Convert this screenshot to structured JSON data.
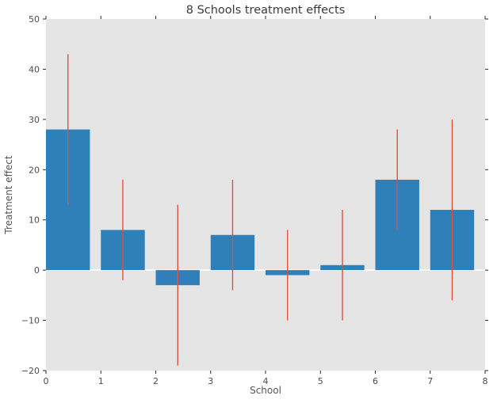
{
  "chart_data": {
    "type": "bar",
    "title": "8 Schools treatment effects",
    "xlabel": "School",
    "ylabel": "Treatment effect",
    "categories": [
      "0",
      "1",
      "2",
      "3",
      "4",
      "5",
      "6",
      "7"
    ],
    "values": [
      28,
      8,
      -3,
      7,
      -1,
      1,
      18,
      12
    ],
    "error_margins": [
      15,
      10,
      16,
      11,
      9,
      11,
      10,
      18
    ],
    "bar_width": 0.8,
    "bar_alignment": "edge",
    "xlim": [
      0,
      8
    ],
    "ylim": [
      -20,
      50
    ],
    "x_ticks": [
      0,
      1,
      2,
      3,
      4,
      5,
      6,
      7,
      8
    ],
    "y_ticks": [
      -20,
      -10,
      0,
      10,
      20,
      30,
      40,
      50
    ],
    "legend_position": "none",
    "grid": "horizontal-zero-line",
    "colors": {
      "bar_fill": "#2f7fb8",
      "error_bar": "#e2513d",
      "plot_background": "#e5e5e5",
      "figure_background": "#ffffff",
      "zero_line": "#ffffff",
      "tick_mark": "#262626",
      "tick_label": "#4c4c4c",
      "title_text": "#3a3a3a",
      "axis_label_text": "#555555"
    }
  }
}
